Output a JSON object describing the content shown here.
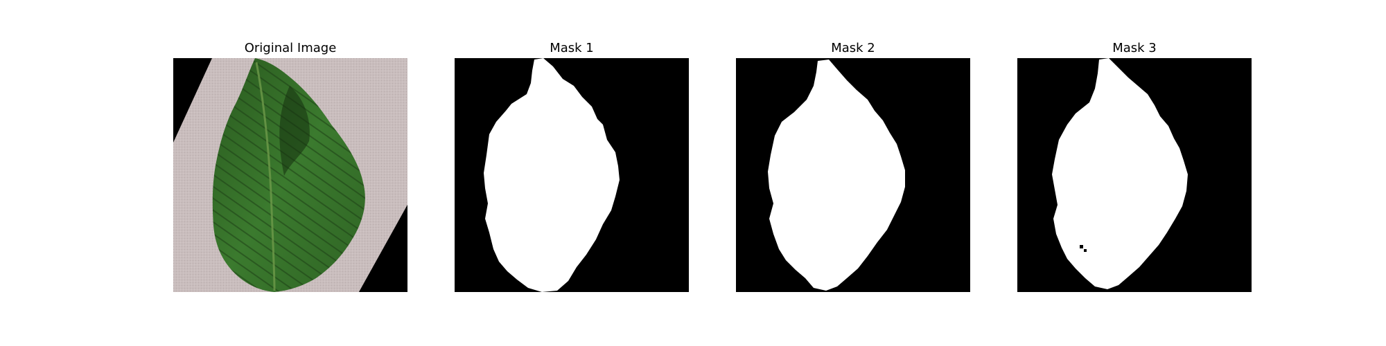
{
  "figure": {
    "panels": [
      {
        "title": "Original Image"
      },
      {
        "title": "Mask 1"
      },
      {
        "title": "Mask 2"
      },
      {
        "title": "Mask 3"
      }
    ]
  },
  "colors": {
    "background": "#ffffff",
    "mask_background": "#000000",
    "mask_foreground": "#ffffff",
    "leaf_dark": "#1f4a18",
    "leaf_mid": "#35702a",
    "leaf_light": "#4e8f3a",
    "paper": "#c8bcbc"
  }
}
